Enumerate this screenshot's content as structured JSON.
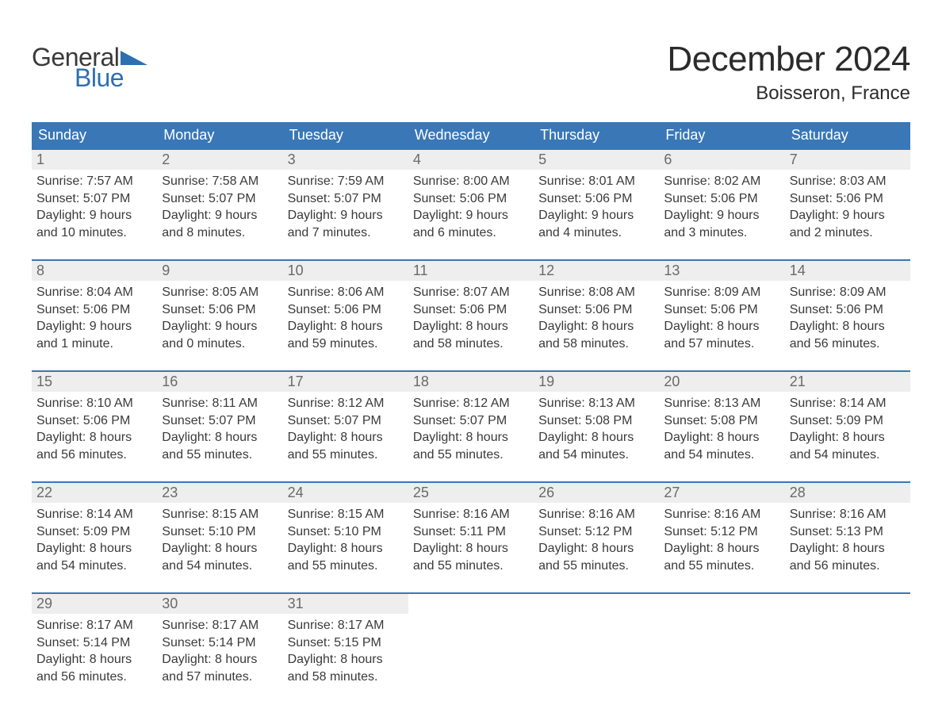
{
  "brand": {
    "top": "General",
    "bottom": "Blue",
    "flag_color": "#2e6fb0"
  },
  "title": "December 2024",
  "location": "Boisseron, France",
  "colors": {
    "header_bg": "#3a77b6",
    "header_text": "#ffffff",
    "daynum_bg": "#eeeeee",
    "daynum_text": "#6a6a6a",
    "body_text": "#3a3a3a",
    "week_border": "#3a77b6"
  },
  "days_of_week": [
    "Sunday",
    "Monday",
    "Tuesday",
    "Wednesday",
    "Thursday",
    "Friday",
    "Saturday"
  ],
  "labels": {
    "sunrise": "Sunrise:",
    "sunset": "Sunset:",
    "daylight": "Daylight:"
  },
  "weeks": [
    [
      {
        "n": "1",
        "sunrise": "7:57 AM",
        "sunset": "5:07 PM",
        "daylight_l1": "9 hours",
        "daylight_l2": "and 10 minutes."
      },
      {
        "n": "2",
        "sunrise": "7:58 AM",
        "sunset": "5:07 PM",
        "daylight_l1": "9 hours",
        "daylight_l2": "and 8 minutes."
      },
      {
        "n": "3",
        "sunrise": "7:59 AM",
        "sunset": "5:07 PM",
        "daylight_l1": "9 hours",
        "daylight_l2": "and 7 minutes."
      },
      {
        "n": "4",
        "sunrise": "8:00 AM",
        "sunset": "5:06 PM",
        "daylight_l1": "9 hours",
        "daylight_l2": "and 6 minutes."
      },
      {
        "n": "5",
        "sunrise": "8:01 AM",
        "sunset": "5:06 PM",
        "daylight_l1": "9 hours",
        "daylight_l2": "and 4 minutes."
      },
      {
        "n": "6",
        "sunrise": "8:02 AM",
        "sunset": "5:06 PM",
        "daylight_l1": "9 hours",
        "daylight_l2": "and 3 minutes."
      },
      {
        "n": "7",
        "sunrise": "8:03 AM",
        "sunset": "5:06 PM",
        "daylight_l1": "9 hours",
        "daylight_l2": "and 2 minutes."
      }
    ],
    [
      {
        "n": "8",
        "sunrise": "8:04 AM",
        "sunset": "5:06 PM",
        "daylight_l1": "9 hours",
        "daylight_l2": "and 1 minute."
      },
      {
        "n": "9",
        "sunrise": "8:05 AM",
        "sunset": "5:06 PM",
        "daylight_l1": "9 hours",
        "daylight_l2": "and 0 minutes."
      },
      {
        "n": "10",
        "sunrise": "8:06 AM",
        "sunset": "5:06 PM",
        "daylight_l1": "8 hours",
        "daylight_l2": "and 59 minutes."
      },
      {
        "n": "11",
        "sunrise": "8:07 AM",
        "sunset": "5:06 PM",
        "daylight_l1": "8 hours",
        "daylight_l2": "and 58 minutes."
      },
      {
        "n": "12",
        "sunrise": "8:08 AM",
        "sunset": "5:06 PM",
        "daylight_l1": "8 hours",
        "daylight_l2": "and 58 minutes."
      },
      {
        "n": "13",
        "sunrise": "8:09 AM",
        "sunset": "5:06 PM",
        "daylight_l1": "8 hours",
        "daylight_l2": "and 57 minutes."
      },
      {
        "n": "14",
        "sunrise": "8:09 AM",
        "sunset": "5:06 PM",
        "daylight_l1": "8 hours",
        "daylight_l2": "and 56 minutes."
      }
    ],
    [
      {
        "n": "15",
        "sunrise": "8:10 AM",
        "sunset": "5:06 PM",
        "daylight_l1": "8 hours",
        "daylight_l2": "and 56 minutes."
      },
      {
        "n": "16",
        "sunrise": "8:11 AM",
        "sunset": "5:07 PM",
        "daylight_l1": "8 hours",
        "daylight_l2": "and 55 minutes."
      },
      {
        "n": "17",
        "sunrise": "8:12 AM",
        "sunset": "5:07 PM",
        "daylight_l1": "8 hours",
        "daylight_l2": "and 55 minutes."
      },
      {
        "n": "18",
        "sunrise": "8:12 AM",
        "sunset": "5:07 PM",
        "daylight_l1": "8 hours",
        "daylight_l2": "and 55 minutes."
      },
      {
        "n": "19",
        "sunrise": "8:13 AM",
        "sunset": "5:08 PM",
        "daylight_l1": "8 hours",
        "daylight_l2": "and 54 minutes."
      },
      {
        "n": "20",
        "sunrise": "8:13 AM",
        "sunset": "5:08 PM",
        "daylight_l1": "8 hours",
        "daylight_l2": "and 54 minutes."
      },
      {
        "n": "21",
        "sunrise": "8:14 AM",
        "sunset": "5:09 PM",
        "daylight_l1": "8 hours",
        "daylight_l2": "and 54 minutes."
      }
    ],
    [
      {
        "n": "22",
        "sunrise": "8:14 AM",
        "sunset": "5:09 PM",
        "daylight_l1": "8 hours",
        "daylight_l2": "and 54 minutes."
      },
      {
        "n": "23",
        "sunrise": "8:15 AM",
        "sunset": "5:10 PM",
        "daylight_l1": "8 hours",
        "daylight_l2": "and 54 minutes."
      },
      {
        "n": "24",
        "sunrise": "8:15 AM",
        "sunset": "5:10 PM",
        "daylight_l1": "8 hours",
        "daylight_l2": "and 55 minutes."
      },
      {
        "n": "25",
        "sunrise": "8:16 AM",
        "sunset": "5:11 PM",
        "daylight_l1": "8 hours",
        "daylight_l2": "and 55 minutes."
      },
      {
        "n": "26",
        "sunrise": "8:16 AM",
        "sunset": "5:12 PM",
        "daylight_l1": "8 hours",
        "daylight_l2": "and 55 minutes."
      },
      {
        "n": "27",
        "sunrise": "8:16 AM",
        "sunset": "5:12 PM",
        "daylight_l1": "8 hours",
        "daylight_l2": "and 55 minutes."
      },
      {
        "n": "28",
        "sunrise": "8:16 AM",
        "sunset": "5:13 PM",
        "daylight_l1": "8 hours",
        "daylight_l2": "and 56 minutes."
      }
    ],
    [
      {
        "n": "29",
        "sunrise": "8:17 AM",
        "sunset": "5:14 PM",
        "daylight_l1": "8 hours",
        "daylight_l2": "and 56 minutes."
      },
      {
        "n": "30",
        "sunrise": "8:17 AM",
        "sunset": "5:14 PM",
        "daylight_l1": "8 hours",
        "daylight_l2": "and 57 minutes."
      },
      {
        "n": "31",
        "sunrise": "8:17 AM",
        "sunset": "5:15 PM",
        "daylight_l1": "8 hours",
        "daylight_l2": "and 58 minutes."
      },
      {
        "empty": true
      },
      {
        "empty": true
      },
      {
        "empty": true
      },
      {
        "empty": true
      }
    ]
  ]
}
